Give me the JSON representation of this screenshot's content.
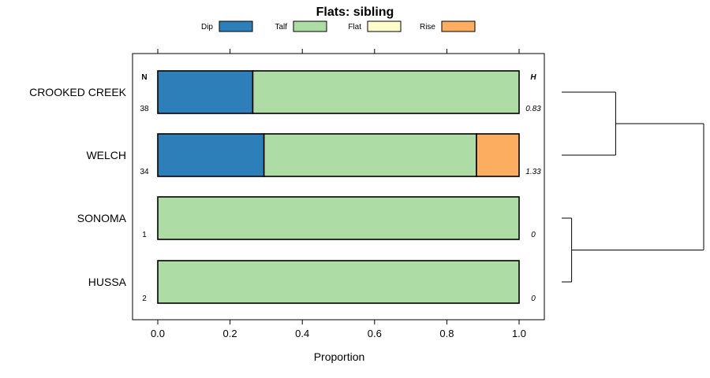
{
  "chart_data": {
    "type": "bar",
    "title": "Flats: sibling",
    "xlabel": "Proportion",
    "ylabel": "",
    "xlim": [
      -0.07,
      1.07
    ],
    "x_ticks": [
      "0.0",
      "0.2",
      "0.4",
      "0.6",
      "0.8",
      "1.0"
    ],
    "legend": [
      {
        "name": "Dip",
        "color": "#2c7fb8"
      },
      {
        "name": "Talf",
        "color": "#addda4"
      },
      {
        "name": "Flat",
        "color": "#ffffcc"
      },
      {
        "name": "Rise",
        "color": "#fdad60"
      }
    ],
    "n_header": "N",
    "h_header": "H",
    "categories": [
      "CROOKED CREEK",
      "WELCH",
      "SONOMA",
      "HUSSA"
    ],
    "n_values": [
      "38",
      "34",
      "1",
      "2"
    ],
    "h_values": [
      "0.83",
      "1.33",
      "0",
      "0"
    ],
    "series": [
      {
        "name": "Dip",
        "values": [
          0.263,
          0.294,
          0,
          0
        ]
      },
      {
        "name": "Talf",
        "values": [
          0.737,
          0.588,
          1,
          1
        ]
      },
      {
        "name": "Flat",
        "values": [
          0,
          0,
          0,
          0
        ]
      },
      {
        "name": "Rise",
        "values": [
          0,
          0.118,
          0,
          0
        ]
      }
    ],
    "dendrogram": {
      "leaves": [
        "CROOKED CREEK",
        "WELCH",
        "SONOMA",
        "HUSSA"
      ],
      "merges": [
        {
          "a": "CROOKED CREEK",
          "b": "WELCH",
          "height": 0.38
        },
        {
          "a": "SONOMA",
          "b": "HUSSA",
          "height": 0.07
        },
        {
          "a": "CROOKED CREEK+WELCH",
          "b": "SONOMA+HUSSA",
          "height": 1.0
        }
      ]
    }
  }
}
